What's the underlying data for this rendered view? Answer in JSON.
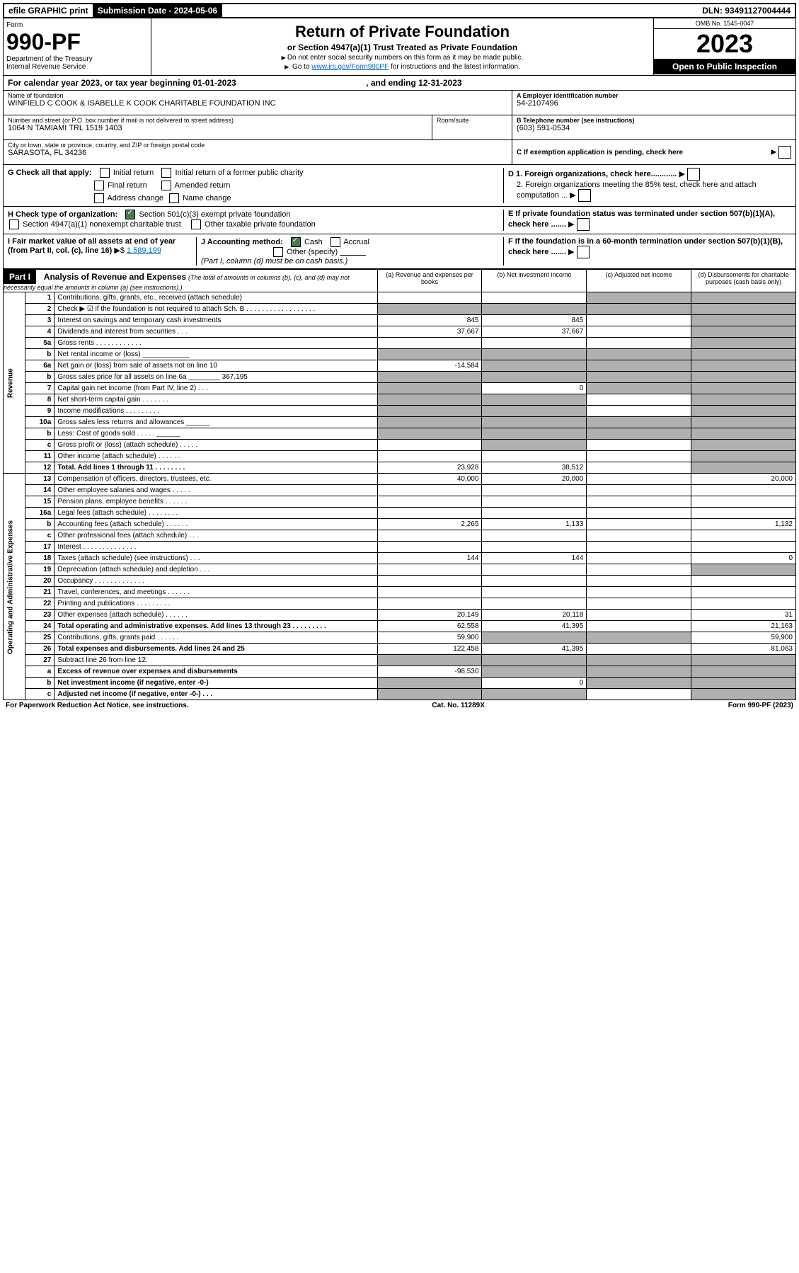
{
  "topbar": {
    "efile": "efile GRAPHIC print",
    "submission": "Submission Date - 2024-05-06",
    "dln": "DLN: 93491127004444"
  },
  "header": {
    "form_label": "Form",
    "form_number": "990-PF",
    "dept": "Department of the Treasury",
    "irs": "Internal Revenue Service",
    "title": "Return of Private Foundation",
    "subtitle": "or Section 4947(a)(1) Trust Treated as Private Foundation",
    "instr1": "Do not enter social security numbers on this form as it may be made public.",
    "instr2": "Go to",
    "instr2_link": "www.irs.gov/Form990PF",
    "instr2_suffix": "for instructions and the latest information.",
    "omb": "OMB No. 1545-0047",
    "year": "2023",
    "inspection": "Open to Public Inspection"
  },
  "calyear": "For calendar year 2023, or tax year beginning 01-01-2023",
  "calyear_end": ", and ending 12-31-2023",
  "foundation": {
    "name_label": "Name of foundation",
    "name": "WINFIELD C COOK & ISABELLE K COOK CHARITABLE FOUNDATION INC",
    "addr_label": "Number and street (or P.O. box number if mail is not delivered to street address)",
    "addr": "1064 N TAMIAMI TRL 1519 1403",
    "room_label": "Room/suite",
    "city_label": "City or town, state or province, country, and ZIP or foreign postal code",
    "city": "SARASOTA, FL  34236",
    "ein_label": "A Employer identification number",
    "ein": "54-2107496",
    "phone_label": "B Telephone number (see instructions)",
    "phone": "(603) 591-0534",
    "c_label": "C If exemption application is pending, check here"
  },
  "checks": {
    "g_label": "G Check all that apply:",
    "initial": "Initial return",
    "initial_former": "Initial return of a former public charity",
    "final": "Final return",
    "amended": "Amended return",
    "address": "Address change",
    "name_change": "Name change",
    "h_label": "H Check type of organization:",
    "h_501c3": "Section 501(c)(3) exempt private foundation",
    "h_4947": "Section 4947(a)(1) nonexempt charitable trust",
    "h_other": "Other taxable private foundation",
    "i_label": "I Fair market value of all assets at end of year (from Part II, col. (c), line 16)",
    "i_value": "1,589,199",
    "j_label": "J Accounting method:",
    "j_cash": "Cash",
    "j_accrual": "Accrual",
    "j_other": "Other (specify)",
    "j_note": "(Part I, column (d) must be on cash basis.)",
    "d1": "D 1. Foreign organizations, check here............",
    "d2": "2. Foreign organizations meeting the 85% test, check here and attach computation ...",
    "e_label": "E  If private foundation status was terminated under section 507(b)(1)(A), check here .......",
    "f_label": "F  If the foundation is in a 60-month termination under section 507(b)(1)(B), check here ......."
  },
  "part1": {
    "label": "Part I",
    "title": "Analysis of Revenue and Expenses",
    "title_note": "(The total of amounts in columns (b), (c), and (d) may not necessarily equal the amounts in column (a) (see instructions).)",
    "col_a": "(a) Revenue and expenses per books",
    "col_b": "(b) Net investment income",
    "col_c": "(c) Adjusted net income",
    "col_d": "(d) Disbursements for charitable purposes (cash basis only)"
  },
  "sidelabels": {
    "revenue": "Revenue",
    "expenses": "Operating and Administrative Expenses"
  },
  "rows": [
    {
      "n": "1",
      "desc": "Contributions, gifts, grants, etc., received (attach schedule)",
      "a": "",
      "b": "",
      "c": "shaded",
      "d": "shaded"
    },
    {
      "n": "2",
      "desc": "Check ▶ ☑ if the foundation is not required to attach Sch. B  . . . . . . . . . . . . . . . . . .",
      "a": "shaded",
      "b": "shaded",
      "c": "shaded",
      "d": "shaded"
    },
    {
      "n": "3",
      "desc": "Interest on savings and temporary cash investments",
      "a": "845",
      "b": "845",
      "c": "",
      "d": "shaded"
    },
    {
      "n": "4",
      "desc": "Dividends and interest from securities  .  .  .",
      "a": "37,667",
      "b": "37,667",
      "c": "",
      "d": "shaded"
    },
    {
      "n": "5a",
      "desc": "Gross rents  .  .  .  .  .  .  .  .  .  .  .  .",
      "a": "",
      "b": "",
      "c": "",
      "d": "shaded"
    },
    {
      "n": "b",
      "desc": "Net rental income or (loss)  ____________",
      "a": "shaded",
      "b": "shaded",
      "c": "shaded",
      "d": "shaded"
    },
    {
      "n": "6a",
      "desc": "Net gain or (loss) from sale of assets not on line 10",
      "a": "-14,584",
      "b": "shaded",
      "c": "shaded",
      "d": "shaded"
    },
    {
      "n": "b",
      "desc": "Gross sales price for all assets on line 6a ________ 367,195",
      "a": "shaded",
      "b": "shaded",
      "c": "shaded",
      "d": "shaded"
    },
    {
      "n": "7",
      "desc": "Capital gain net income (from Part IV, line 2)  .  .  .",
      "a": "shaded",
      "b": "0",
      "c": "shaded",
      "d": "shaded"
    },
    {
      "n": "8",
      "desc": "Net short-term capital gain  .  .  .  .  .  .  .",
      "a": "shaded",
      "b": "shaded",
      "c": "",
      "d": "shaded"
    },
    {
      "n": "9",
      "desc": "Income modifications  .  .  .  .  .  .  .  .  .",
      "a": "shaded",
      "b": "shaded",
      "c": "",
      "d": "shaded"
    },
    {
      "n": "10a",
      "desc": "Gross sales less returns and allowances  ______",
      "a": "shaded",
      "b": "shaded",
      "c": "shaded",
      "d": "shaded"
    },
    {
      "n": "b",
      "desc": "Less: Cost of goods sold  .  .  .  .  . ______",
      "a": "shaded",
      "b": "shaded",
      "c": "shaded",
      "d": "shaded"
    },
    {
      "n": "c",
      "desc": "Gross profit or (loss) (attach schedule)  .  .  .  .  .",
      "a": "",
      "b": "shaded",
      "c": "",
      "d": "shaded"
    },
    {
      "n": "11",
      "desc": "Other income (attach schedule)  .  .  .  .  .  .",
      "a": "",
      "b": "",
      "c": "",
      "d": "shaded"
    },
    {
      "n": "12",
      "desc": "Total. Add lines 1 through 11  .  .  .  .  .  .  .  .",
      "a": "23,928",
      "b": "38,512",
      "c": "",
      "d": "shaded",
      "bold": true
    },
    {
      "n": "13",
      "desc": "Compensation of officers, directors, trustees, etc.",
      "a": "40,000",
      "b": "20,000",
      "c": "",
      "d": "20,000"
    },
    {
      "n": "14",
      "desc": "Other employee salaries and wages  .  .  .  .  .",
      "a": "",
      "b": "",
      "c": "",
      "d": ""
    },
    {
      "n": "15",
      "desc": "Pension plans, employee benefits  .  .  .  .  .  .",
      "a": "",
      "b": "",
      "c": "",
      "d": ""
    },
    {
      "n": "16a",
      "desc": "Legal fees (attach schedule)  .  .  .  .  .  .  .  .",
      "a": "",
      "b": "",
      "c": "",
      "d": ""
    },
    {
      "n": "b",
      "desc": "Accounting fees (attach schedule)  .  .  .  .  .  .",
      "a": "2,265",
      "b": "1,133",
      "c": "",
      "d": "1,132"
    },
    {
      "n": "c",
      "desc": "Other professional fees (attach schedule)  .  .  .",
      "a": "",
      "b": "",
      "c": "",
      "d": ""
    },
    {
      "n": "17",
      "desc": "Interest  .  .  .  .  .  .  .  .  .  .  .  .  .  .",
      "a": "",
      "b": "",
      "c": "",
      "d": ""
    },
    {
      "n": "18",
      "desc": "Taxes (attach schedule) (see instructions)  .  .  .",
      "a": "144",
      "b": "144",
      "c": "",
      "d": "0"
    },
    {
      "n": "19",
      "desc": "Depreciation (attach schedule) and depletion  .  .  .",
      "a": "",
      "b": "",
      "c": "",
      "d": "shaded"
    },
    {
      "n": "20",
      "desc": "Occupancy  .  .  .  .  .  .  .  .  .  .  .  .  .",
      "a": "",
      "b": "",
      "c": "",
      "d": ""
    },
    {
      "n": "21",
      "desc": "Travel, conferences, and meetings  .  .  .  .  .  .",
      "a": "",
      "b": "",
      "c": "",
      "d": ""
    },
    {
      "n": "22",
      "desc": "Printing and publications  .  .  .  .  .  .  .  .  .",
      "a": "",
      "b": "",
      "c": "",
      "d": ""
    },
    {
      "n": "23",
      "desc": "Other expenses (attach schedule)  .  .  .  .  .  .",
      "a": "20,149",
      "b": "20,118",
      "c": "",
      "d": "31"
    },
    {
      "n": "24",
      "desc": "Total operating and administrative expenses. Add lines 13 through 23  .  .  .  .  .  .  .  .  .",
      "a": "62,558",
      "b": "41,395",
      "c": "",
      "d": "21,163",
      "bold": true
    },
    {
      "n": "25",
      "desc": "Contributions, gifts, grants paid  .  .  .  .  .  .",
      "a": "59,900",
      "b": "shaded",
      "c": "shaded",
      "d": "59,900"
    },
    {
      "n": "26",
      "desc": "Total expenses and disbursements. Add lines 24 and 25",
      "a": "122,458",
      "b": "41,395",
      "c": "",
      "d": "81,063",
      "bold": true
    },
    {
      "n": "27",
      "desc": "Subtract line 26 from line 12:",
      "a": "shaded",
      "b": "shaded",
      "c": "shaded",
      "d": "shaded"
    },
    {
      "n": "a",
      "desc": "Excess of revenue over expenses and disbursements",
      "a": "-98,530",
      "b": "shaded",
      "c": "shaded",
      "d": "shaded",
      "bold": true
    },
    {
      "n": "b",
      "desc": "Net investment income (if negative, enter -0-)",
      "a": "shaded",
      "b": "0",
      "c": "shaded",
      "d": "shaded",
      "bold": true
    },
    {
      "n": "c",
      "desc": "Adjusted net income (if negative, enter -0-)  .  .  .",
      "a": "shaded",
      "b": "shaded",
      "c": "",
      "d": "shaded",
      "bold": true
    }
  ],
  "footer": {
    "left": "For Paperwork Reduction Act Notice, see instructions.",
    "center": "Cat. No. 11289X",
    "right": "Form 990-PF (2023)"
  }
}
